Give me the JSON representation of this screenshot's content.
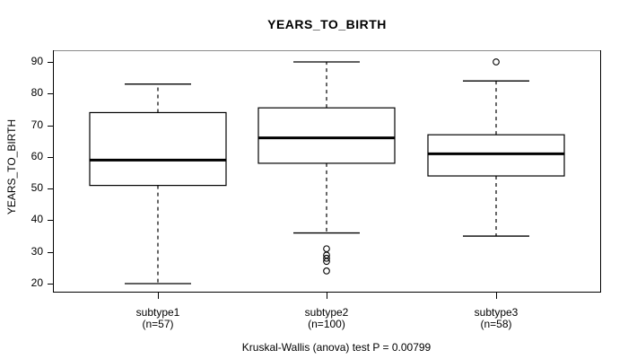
{
  "chart_data": {
    "type": "boxplot",
    "title": "YEARS_TO_BIRTH",
    "ylabel": "YEARS_TO_BIRTH",
    "xlabel": "",
    "caption": "Kruskal-Wallis (anova) test P = 0.00799",
    "ylim": [
      20,
      90
    ],
    "yticks": [
      20,
      30,
      40,
      50,
      60,
      70,
      80,
      90
    ],
    "grid": false,
    "legend": false,
    "groups": [
      {
        "label": "subtype1",
        "n_label": "(n=57)",
        "n": 57,
        "whisker_low": 20,
        "q1": 51,
        "median": 59,
        "q3": 74,
        "whisker_high": 83,
        "outliers": []
      },
      {
        "label": "subtype2",
        "n_label": "(n=100)",
        "n": 100,
        "whisker_low": 36,
        "q1": 58,
        "median": 66,
        "q3": 75.5,
        "whisker_high": 90,
        "outliers": [
          31,
          29,
          28,
          27,
          24
        ]
      },
      {
        "label": "subtype3",
        "n_label": "(n=58)",
        "n": 58,
        "whisker_low": 35,
        "q1": 54,
        "median": 61,
        "q3": 67,
        "whisker_high": 84,
        "outliers": [
          90
        ]
      }
    ],
    "colors": {
      "line": "#000000",
      "box_fill": "#ffffff",
      "frame_top": "#8c8c8c"
    }
  }
}
